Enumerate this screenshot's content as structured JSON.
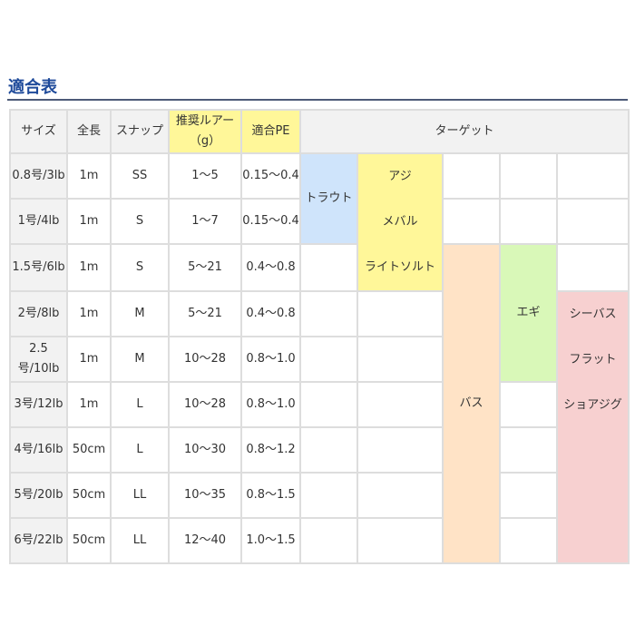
{
  "title": "適合表",
  "headers": {
    "size": "サイズ",
    "length": "全長",
    "snap": "スナップ",
    "lure": "推奨ルアー（g）",
    "pe": "適合PE",
    "target": "ターゲット"
  },
  "rows": [
    {
      "size": "0.8号/3lb",
      "length": "1m",
      "snap": "SS",
      "lure": "1～5",
      "pe": "0.15～0.4"
    },
    {
      "size": "1号/4lb",
      "length": "1m",
      "snap": "S",
      "lure": "1～7",
      "pe": "0.15～0.4"
    },
    {
      "size": "1.5号/6lb",
      "length": "1m",
      "snap": "S",
      "lure": "5～21",
      "pe": "0.4～0.8"
    },
    {
      "size": "2号/8lb",
      "length": "1m",
      "snap": "M",
      "lure": "5～21",
      "pe": "0.4～0.8"
    },
    {
      "size": "2.5号/10lb",
      "length": "1m",
      "snap": "M",
      "lure": "10～28",
      "pe": "0.8～1.0"
    },
    {
      "size": "3号/12lb",
      "length": "1m",
      "snap": "L",
      "lure": "10～28",
      "pe": "0.8～1.0"
    },
    {
      "size": "4号/16lb",
      "length": "50cm",
      "snap": "L",
      "lure": "10～30",
      "pe": "0.8～1.2"
    },
    {
      "size": "5号/20lb",
      "length": "50cm",
      "snap": "LL",
      "lure": "10～35",
      "pe": "0.8～1.5"
    },
    {
      "size": "6号/22lb",
      "length": "50cm",
      "snap": "LL",
      "lure": "12～40",
      "pe": "1.0～1.5"
    }
  ],
  "targets": {
    "trout": "トラウト",
    "aji": "アジ",
    "mebaru": "メバル",
    "lightsalt": "ライトソルト",
    "bass": "バス",
    "egi": "エギ",
    "seabass": "シーバス",
    "flat": "フラット",
    "shorejig": "ショアジグ"
  },
  "colors": {
    "trout": "#cfe4fb",
    "lightgame": "#fff799",
    "bass": "#ffe3c6",
    "egi": "#d9f8b8",
    "sea": "#f7d0d0",
    "title": "#1e4a9a"
  }
}
